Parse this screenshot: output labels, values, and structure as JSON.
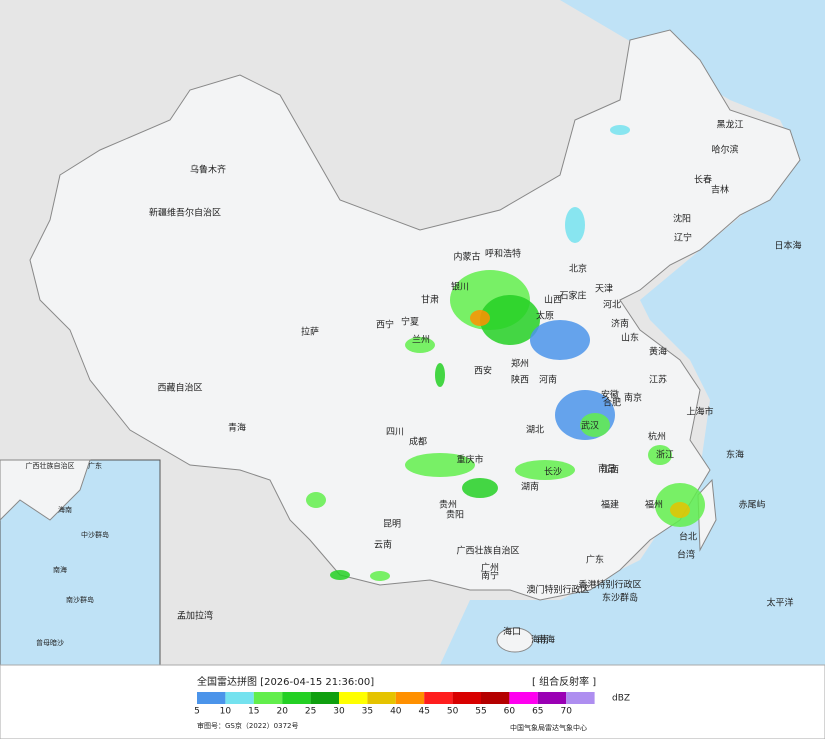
{
  "map_labels": [
    "乌鲁木齐",
    "新疆维吾尔自治区",
    "西藏自治区",
    "拉萨",
    "青海",
    "西宁",
    "四川",
    "成都",
    "重庆市",
    "贵州",
    "贵阳",
    "云南",
    "昆明",
    "广西壮族自治区",
    "南宁",
    "广东",
    "广州",
    "海南",
    "海口",
    "湖南",
    "长沙",
    "湖北",
    "武汉",
    "河南",
    "郑州",
    "山西",
    "太原",
    "河北",
    "石家庄",
    "北京",
    "天津",
    "山东",
    "济南",
    "江苏",
    "南京",
    "上海市",
    "浙江",
    "杭州",
    "安徽",
    "合肥",
    "江西",
    "南昌",
    "福建",
    "福州",
    "台湾",
    "台北",
    "黑龙江",
    "哈尔滨",
    "吉林",
    "长春",
    "辽宁",
    "沈阳",
    "内蒙古",
    "呼和浩特",
    "宁夏",
    "银川",
    "甘肃",
    "兰州",
    "陕西",
    "西安",
    "香港特别行政区",
    "澳门特别行政区",
    "东沙群岛",
    "赤尾屿",
    "日本海",
    "黄海",
    "东海",
    "太平洋",
    "孟加拉湾",
    "南海"
  ],
  "inset_labels": [
    "广西壮族自治区",
    "广东",
    "海南",
    "中沙群岛",
    "南海",
    "南沙群岛",
    "曾母暗沙"
  ],
  "legend": {
    "ticks": [
      5,
      10,
      15,
      20,
      25,
      30,
      35,
      40,
      45,
      50,
      55,
      60,
      65,
      70
    ],
    "unit": "dBZ",
    "colors": [
      "#4b94ea",
      "#74e2ef",
      "#62ee4c",
      "#24d024",
      "#0f9f0f",
      "#ffff00",
      "#e5c300",
      "#ff9000",
      "#ff1e1e",
      "#d80000",
      "#b40000",
      "#ff00f0",
      "#9a00b4",
      "#ae8ef0"
    ]
  },
  "footer": {
    "title": "全国雷达拼图 [2026-04-15 21:36:00]",
    "product": "[ 组合反射率 ]",
    "approval": "审图号：GS京（2022）0372号",
    "agency": "中国气象局雷达气象中心"
  }
}
